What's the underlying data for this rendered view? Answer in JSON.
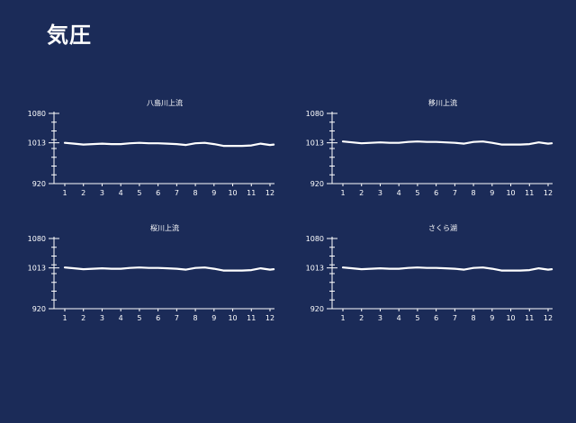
{
  "page": {
    "title": "気圧"
  },
  "colors": {
    "background": "#1b2b58",
    "line": "#ffffff",
    "text": "#ffffff"
  },
  "chart_data": [
    {
      "type": "line",
      "title": "八島川上流",
      "xlabel": "",
      "ylabel": "",
      "xticks": [
        1,
        2,
        3,
        4,
        5,
        6,
        7,
        8,
        9,
        10,
        11,
        12
      ],
      "yticks": [
        920,
        1013,
        1080
      ],
      "ylim": [
        920,
        1080
      ],
      "xlim": [
        0.6,
        12.2
      ],
      "grid": false,
      "x": [
        1,
        1.5,
        2,
        2.5,
        3,
        3.5,
        4,
        4.5,
        5,
        5.5,
        6,
        6.5,
        7,
        7.5,
        8,
        8.5,
        9,
        9.5,
        10,
        10.5,
        11,
        11.5,
        12,
        12.2
      ],
      "y": [
        1013,
        1011,
        1009,
        1010,
        1011,
        1010,
        1010,
        1012,
        1013,
        1012,
        1012,
        1011,
        1010,
        1008,
        1012,
        1013,
        1010,
        1006,
        1006,
        1006,
        1007,
        1011,
        1008,
        1009
      ]
    },
    {
      "type": "line",
      "title": "移川上流",
      "xlabel": "",
      "ylabel": "",
      "xticks": [
        1,
        2,
        3,
        4,
        5,
        6,
        7,
        8,
        9,
        10,
        11,
        12
      ],
      "yticks": [
        920,
        1013,
        1080
      ],
      "ylim": [
        920,
        1080
      ],
      "xlim": [
        0.6,
        12.2
      ],
      "grid": false,
      "x": [
        1,
        1.5,
        2,
        2.5,
        3,
        3.5,
        4,
        4.5,
        5,
        5.5,
        6,
        6.5,
        7,
        7.5,
        8,
        8.5,
        9,
        9.5,
        10,
        10.5,
        11,
        11.5,
        12,
        12.2
      ],
      "y": [
        1016,
        1014,
        1012,
        1013,
        1014,
        1013,
        1013,
        1015,
        1016,
        1015,
        1015,
        1014,
        1013,
        1011,
        1015,
        1016,
        1013,
        1009,
        1009,
        1009,
        1010,
        1014,
        1011,
        1012
      ]
    },
    {
      "type": "line",
      "title": "桜川上流",
      "xlabel": "",
      "ylabel": "",
      "xticks": [
        1,
        2,
        3,
        4,
        5,
        6,
        7,
        8,
        9,
        10,
        11,
        12
      ],
      "yticks": [
        920,
        1013,
        1080
      ],
      "ylim": [
        920,
        1080
      ],
      "xlim": [
        0.6,
        12.2
      ],
      "grid": false,
      "x": [
        1,
        1.5,
        2,
        2.5,
        3,
        3.5,
        4,
        4.5,
        5,
        5.5,
        6,
        6.5,
        7,
        7.5,
        8,
        8.5,
        9,
        9.5,
        10,
        10.5,
        11,
        11.5,
        12,
        12.2
      ],
      "y": [
        1014,
        1012,
        1010,
        1011,
        1012,
        1011,
        1011,
        1013,
        1014,
        1013,
        1013,
        1012,
        1011,
        1009,
        1013,
        1014,
        1011,
        1007,
        1007,
        1007,
        1008,
        1012,
        1009,
        1010
      ]
    },
    {
      "type": "line",
      "title": "さくら湖",
      "xlabel": "",
      "ylabel": "",
      "xticks": [
        1,
        2,
        3,
        4,
        5,
        6,
        7,
        8,
        9,
        10,
        11,
        12
      ],
      "yticks": [
        920,
        1013,
        1080
      ],
      "ylim": [
        920,
        1080
      ],
      "xlim": [
        0.6,
        12.2
      ],
      "grid": false,
      "x": [
        1,
        1.5,
        2,
        2.5,
        3,
        3.5,
        4,
        4.5,
        5,
        5.5,
        6,
        6.5,
        7,
        7.5,
        8,
        8.5,
        9,
        9.5,
        10,
        10.5,
        11,
        11.5,
        12,
        12.2
      ],
      "y": [
        1014,
        1012,
        1010,
        1011,
        1012,
        1011,
        1011,
        1013,
        1014,
        1013,
        1013,
        1012,
        1011,
        1009,
        1013,
        1014,
        1011,
        1007,
        1007,
        1007,
        1008,
        1012,
        1009,
        1010
      ]
    }
  ]
}
